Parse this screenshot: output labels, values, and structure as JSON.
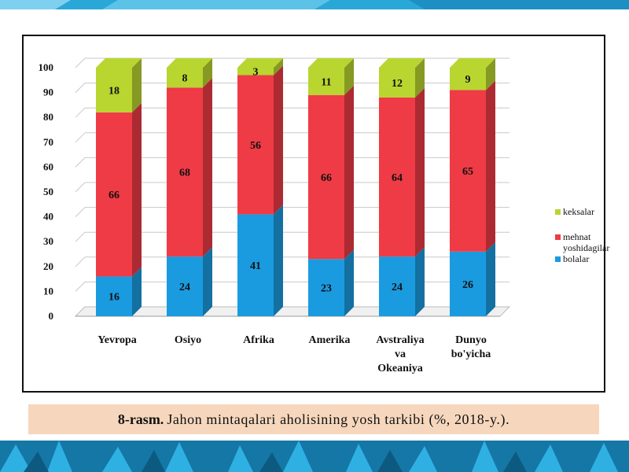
{
  "chart_data": {
    "type": "bar",
    "stacked": true,
    "categories": [
      "Yevropa",
      "Osiyo",
      "Afrika",
      "Amerika",
      "Avstraliya va Okeaniya",
      "Dunyo bo'yicha"
    ],
    "category_lines": [
      [
        "Yevropa"
      ],
      [
        "Osiyo"
      ],
      [
        "Afrika"
      ],
      [
        "Amerika"
      ],
      [
        "Avstraliya",
        "va",
        "Okeaniya"
      ],
      [
        "Dunyo",
        "bo'yicha"
      ]
    ],
    "series": [
      {
        "name": "bolalar",
        "values": [
          16,
          24,
          41,
          23,
          24,
          26
        ],
        "color": "#1a9be0"
      },
      {
        "name": "mehnat yoshidagilar",
        "values": [
          66,
          68,
          56,
          66,
          64,
          65
        ],
        "color": "#ef3b45"
      },
      {
        "name": "keksalar",
        "values": [
          18,
          8,
          3,
          11,
          12,
          9
        ],
        "color": "#b9d530"
      }
    ],
    "ylim": [
      0,
      100
    ],
    "yticks": [
      0,
      10,
      20,
      30,
      40,
      50,
      60,
      70,
      80,
      90,
      100
    ],
    "grid": true,
    "legend_position": "right"
  },
  "legend": {
    "keksalar": "keksalar",
    "mehnat_line1": "mehnat",
    "mehnat_line2": "yoshidagilar",
    "bolalar": "bolalar"
  },
  "caption": {
    "label": "8-rasm.",
    "text": "Jahon mintaqalari aholisining yosh tarkibi (%, 2018-y.)."
  },
  "colors": {
    "band": "#29a8d8",
    "caption_bg": "#f6d7bd",
    "bolalar": "#1a9be0",
    "mehnat": "#ef3b45",
    "keksalar": "#b9d530"
  }
}
